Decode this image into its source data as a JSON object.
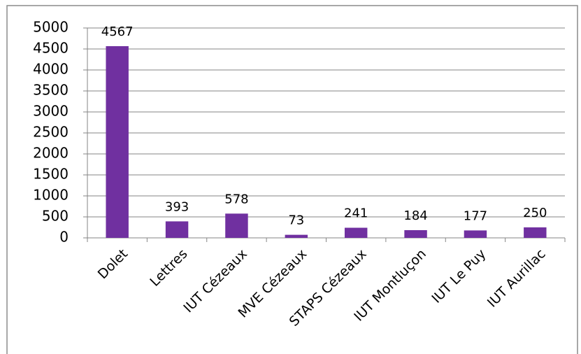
{
  "chart_data": {
    "type": "bar",
    "categories": [
      "Dolet",
      "Lettres",
      "IUT Cézeaux",
      "MVE Cézeaux",
      "STAPS Cézeaux",
      "IUT Montluçon",
      "IUT Le Puy",
      "IUT Aurillac"
    ],
    "values": [
      4567,
      393,
      578,
      73,
      241,
      184,
      177,
      250
    ],
    "color": "#7030a0",
    "ylim": [
      0,
      5000
    ],
    "yticks": [
      0,
      500,
      1000,
      1500,
      2000,
      2500,
      3000,
      3500,
      4000,
      4500,
      5000
    ],
    "grid": true
  }
}
